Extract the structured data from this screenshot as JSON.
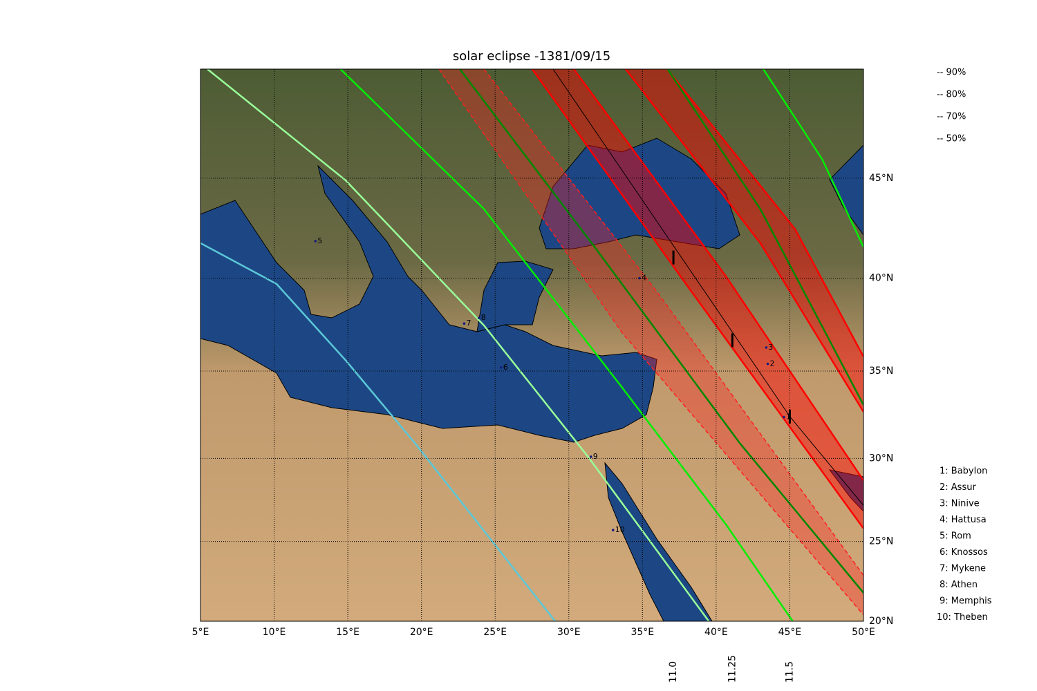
{
  "map": {
    "title": "solar eclipse -1381/09/15",
    "lonlim": [
      5,
      50
    ],
    "latlim": [
      20,
      50
    ],
    "grid": true,
    "lonticks": [
      {
        "value": 5,
        "label": "5°E"
      },
      {
        "value": 10,
        "label": "10°E"
      },
      {
        "value": 15,
        "label": "15°E"
      },
      {
        "value": 20,
        "label": "20°E"
      },
      {
        "value": 25,
        "label": "25°E"
      },
      {
        "value": 30,
        "label": "30°E"
      },
      {
        "value": 35,
        "label": "35°E"
      },
      {
        "value": 40,
        "label": "40°E"
      },
      {
        "value": 45,
        "label": "45°E"
      },
      {
        "value": 50,
        "label": "50°E"
      }
    ],
    "latticks": [
      {
        "value": 20,
        "label": "20°N"
      },
      {
        "value": 25,
        "label": "25°N"
      },
      {
        "value": 30,
        "label": "30°N"
      },
      {
        "value": 35,
        "label": "35°N"
      },
      {
        "value": 40,
        "label": "40°N"
      },
      {
        "value": 45,
        "label": "45°N"
      }
    ],
    "time_ticks": [
      {
        "value": 37.1,
        "label": "11.0"
      },
      {
        "value": 41.1,
        "label": "11.25"
      },
      {
        "value": 45,
        "label": "11.5"
      }
    ],
    "contours": [
      {
        "name": "-- 90%",
        "color": "#008800",
        "curves": [
          {
            "lon": [
              22.6,
              31.75,
              41.6,
              50
            ],
            "lat": [
              50,
              41.6,
              30.9,
              21.8
            ]
          },
          {
            "lon": [
              36.7,
              43.0,
              50
            ],
            "lat": [
              50,
              43.5,
              33.1
            ]
          }
        ]
      },
      {
        "name": "-- 80%",
        "color": "#00ee00",
        "curves": [
          {
            "lon": [
              14.5,
              24.24,
              33.6,
              40.7,
              45.2
            ],
            "lat": [
              50,
              43.5,
              34.1,
              26,
              20
            ]
          },
          {
            "lon": [
              43.2,
              47.2,
              50
            ],
            "lat": [
              50,
              45.9,
              41.6
            ]
          }
        ]
      },
      {
        "name": "-- 70%",
        "color": "#99ff99",
        "curves": [
          {
            "lon": [
              5.47,
              14.85,
              24.24,
              31.3,
              39.5
            ],
            "lat": [
              50,
              44.9,
              37.5,
              30.1,
              20
            ]
          }
        ]
      },
      {
        "name": "-- 50%",
        "color": "#5bc8d8",
        "curves": [
          {
            "lon": [
              5,
              10.16,
              14.85,
              19.55,
              29.07
            ],
            "lat": [
              41.8,
              39.7,
              35.6,
              30.9,
              20
            ]
          }
        ]
      }
    ],
    "bands": [
      {
        "color": "#ff2020",
        "dashed": true,
        "edges": [
          {
            "lon": [
              21.19,
              33.62,
              50
            ],
            "lat": [
              50,
              37.1,
              20.4
            ]
          },
          {
            "lon": [
              24.24,
              35.97,
              50
            ],
            "lat": [
              50,
              39.3,
              22.9
            ]
          }
        ]
      },
      {
        "color": "#ff0000",
        "dashed": false,
        "edges": [
          {
            "lon": [
              27.52,
              38.32,
              50
            ],
            "lat": [
              50,
              39.3,
              25.8
            ]
          },
          {
            "lon": [
              30.34,
              40.66,
              50
            ],
            "lat": [
              50,
              40.1,
              28.7
            ]
          }
        ],
        "center": {
          "lon": [
            28.93,
            45.03,
            50
          ],
          "lat": [
            50,
            32.4,
            27.2
          ]
        }
      },
      {
        "color": "#ff0000",
        "dashed": false,
        "edges": [
          {
            "lon": [
              33.86,
              43.0,
              50
            ],
            "lat": [
              50,
              41.8,
              32.7
            ]
          },
          {
            "lon": [
              36.67,
              45.36,
              50
            ],
            "lat": [
              50,
              42.5,
              35.8
            ]
          }
        ]
      }
    ],
    "cities": [
      {
        "marker": "1",
        "legend": "1: Babylon",
        "lon": 44.6,
        "lat": 32.4
      },
      {
        "marker": "2",
        "legend": "2: Assur",
        "lon": 43.5,
        "lat": 35.4
      },
      {
        "marker": "3",
        "legend": "3: Ninive",
        "lon": 43.4,
        "lat": 36.3
      },
      {
        "marker": "4",
        "legend": "4: Hattusa",
        "lon": 34.8,
        "lat": 40.0
      },
      {
        "marker": "5",
        "legend": "5: Rom",
        "lon": 12.8,
        "lat": 41.9
      },
      {
        "marker": "6",
        "legend": "6: Knossos",
        "lon": 25.4,
        "lat": 35.2
      },
      {
        "marker": "7",
        "legend": "7: Mykene",
        "lon": 22.9,
        "lat": 37.6
      },
      {
        "marker": "8",
        "legend": "8: Athen",
        "lon": 23.9,
        "lat": 37.9
      },
      {
        "marker": "9",
        "legend": "9: Memphis",
        "lon": 31.5,
        "lat": 30.1
      },
      {
        "marker": "10",
        "legend": "10: Theben",
        "lon": 33.0,
        "lat": 25.7
      }
    ]
  }
}
